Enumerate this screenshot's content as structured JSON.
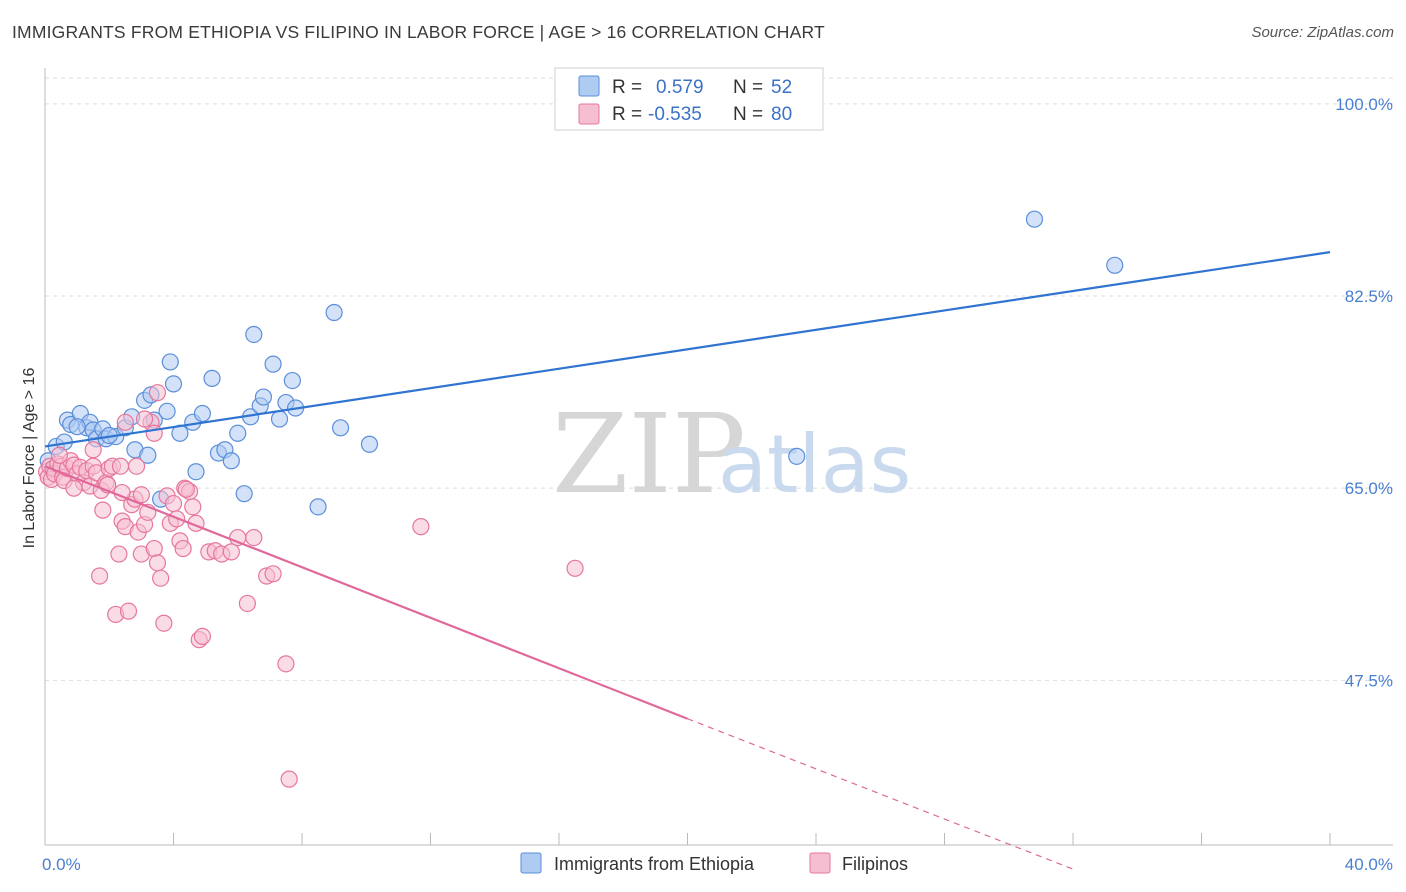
{
  "title": "IMMIGRANTS FROM ETHIOPIA VS FILIPINO IN LABOR FORCE | AGE > 16 CORRELATION CHART",
  "source": "Source: ZipAtlas.com",
  "watermark": {
    "zip": "ZIP",
    "atlas": "atlas"
  },
  "colors": {
    "blue_fill": "#aecbf2",
    "blue_stroke": "#5b8fd9",
    "blue_line": "#2f74d0",
    "pink_fill": "#f6bfd1",
    "pink_stroke": "#e7779c",
    "pink_line": "#e0689a",
    "grid": "#dddddd",
    "axis_text": "#4a7fd0"
  },
  "legend": {
    "rows": [
      {
        "r_label": "R =",
        "r_value": "0.579",
        "n_label": "N =",
        "n_value": "52",
        "color": "blue"
      },
      {
        "r_label": "R =",
        "r_value": "-0.535",
        "n_label": "N =",
        "n_value": "80",
        "color": "pink"
      }
    ]
  },
  "bottom_legend": [
    {
      "label": "Immigrants from Ethiopia",
      "color": "blue"
    },
    {
      "label": "Filipinos",
      "color": "pink"
    }
  ],
  "chart_data": {
    "type": "scatter",
    "title": "IMMIGRANTS FROM ETHIOPIA VS FILIPINO IN LABOR FORCE | AGE > 16 CORRELATION CHART",
    "xlabel": "",
    "ylabel": "In Labor Force | Age > 16",
    "xlim": [
      0,
      40
    ],
    "ylim": [
      32.5,
      104
    ],
    "x_tick_labels": [
      {
        "value": 0,
        "label": "0.0%"
      },
      {
        "value": 40,
        "label": "40.0%"
      }
    ],
    "y_tick_labels": [
      {
        "value": 100,
        "label": "100.0%"
      },
      {
        "value": 82.5,
        "label": "82.5%"
      },
      {
        "value": 65,
        "label": "65.0%"
      },
      {
        "value": 47.5,
        "label": "47.5%"
      }
    ],
    "grid": true,
    "series": [
      {
        "name": "Immigrants from Ethiopia",
        "color": "blue",
        "trend": {
          "x": [
            0,
            40
          ],
          "y": [
            68.8,
            86.5
          ],
          "dashed_from": null
        },
        "points": [
          [
            0.1,
            67.5
          ],
          [
            0.35,
            68.8
          ],
          [
            0.6,
            69.2
          ],
          [
            0.7,
            71.2
          ],
          [
            0.8,
            70.8
          ],
          [
            1.1,
            71.8
          ],
          [
            1.3,
            70.5
          ],
          [
            1.4,
            71.0
          ],
          [
            1.5,
            70.3
          ],
          [
            1.6,
            69.5
          ],
          [
            1.8,
            70.4
          ],
          [
            1.9,
            69.5
          ],
          [
            2.2,
            69.7
          ],
          [
            2.5,
            70.5
          ],
          [
            2.7,
            71.5
          ],
          [
            2.8,
            68.5
          ],
          [
            3.1,
            73.0
          ],
          [
            3.2,
            68.0
          ],
          [
            3.3,
            73.5
          ],
          [
            3.4,
            71.2
          ],
          [
            3.6,
            64.0
          ],
          [
            3.8,
            72.0
          ],
          [
            3.9,
            76.5
          ],
          [
            4.0,
            74.5
          ],
          [
            4.2,
            70.0
          ],
          [
            4.6,
            71.0
          ],
          [
            4.7,
            66.5
          ],
          [
            4.9,
            71.8
          ],
          [
            5.2,
            75.0
          ],
          [
            5.4,
            68.2
          ],
          [
            5.6,
            68.5
          ],
          [
            5.8,
            67.5
          ],
          [
            6.0,
            70.0
          ],
          [
            6.2,
            64.5
          ],
          [
            6.4,
            71.5
          ],
          [
            6.5,
            79.0
          ],
          [
            6.7,
            72.5
          ],
          [
            6.8,
            73.3
          ],
          [
            7.1,
            76.3
          ],
          [
            7.3,
            71.3
          ],
          [
            7.5,
            72.8
          ],
          [
            7.7,
            74.8
          ],
          [
            7.8,
            72.3
          ],
          [
            8.5,
            63.3
          ],
          [
            9.0,
            81.0
          ],
          [
            9.2,
            70.5
          ],
          [
            10.1,
            69.0
          ],
          [
            23.4,
            67.9
          ],
          [
            30.8,
            89.5
          ],
          [
            33.3,
            85.3
          ],
          [
            2.0,
            69.8
          ],
          [
            1.0,
            70.6
          ]
        ]
      },
      {
        "name": "Filipinos",
        "color": "pink",
        "trend": {
          "x": [
            0,
            20,
            32
          ],
          "y": [
            67.0,
            44.0,
            30.3
          ],
          "dashed_from": 20
        },
        "points": [
          [
            0.05,
            66.5
          ],
          [
            0.1,
            66.0
          ],
          [
            0.15,
            67.0
          ],
          [
            0.2,
            65.8
          ],
          [
            0.25,
            66.8
          ],
          [
            0.3,
            66.3
          ],
          [
            0.4,
            67.2
          ],
          [
            0.5,
            67.0
          ],
          [
            0.55,
            66.0
          ],
          [
            0.6,
            65.7
          ],
          [
            0.7,
            66.8
          ],
          [
            0.8,
            67.5
          ],
          [
            0.9,
            67.1
          ],
          [
            1.0,
            66.3
          ],
          [
            1.1,
            66.9
          ],
          [
            1.2,
            65.5
          ],
          [
            1.3,
            66.6
          ],
          [
            1.4,
            65.2
          ],
          [
            1.5,
            67.0
          ],
          [
            1.6,
            66.4
          ],
          [
            1.7,
            57.0
          ],
          [
            1.75,
            64.8
          ],
          [
            1.8,
            63.0
          ],
          [
            1.9,
            65.5
          ],
          [
            2.0,
            66.8
          ],
          [
            2.1,
            67.0
          ],
          [
            2.2,
            53.5
          ],
          [
            2.3,
            59.0
          ],
          [
            2.4,
            62.0
          ],
          [
            2.5,
            61.5
          ],
          [
            2.6,
            53.8
          ],
          [
            2.7,
            63.5
          ],
          [
            2.8,
            64.0
          ],
          [
            2.85,
            67.0
          ],
          [
            2.9,
            61.0
          ],
          [
            3.0,
            59.0
          ],
          [
            3.1,
            61.7
          ],
          [
            3.2,
            62.8
          ],
          [
            3.3,
            71.0
          ],
          [
            3.4,
            59.5
          ],
          [
            3.5,
            58.2
          ],
          [
            3.6,
            56.8
          ],
          [
            3.7,
            52.7
          ],
          [
            3.8,
            64.3
          ],
          [
            3.9,
            61.8
          ],
          [
            4.0,
            63.6
          ],
          [
            4.1,
            62.2
          ],
          [
            4.2,
            60.2
          ],
          [
            4.3,
            59.5
          ],
          [
            4.35,
            65.0
          ],
          [
            4.5,
            64.7
          ],
          [
            4.6,
            63.3
          ],
          [
            4.7,
            61.8
          ],
          [
            4.8,
            51.2
          ],
          [
            4.9,
            51.5
          ],
          [
            5.1,
            59.2
          ],
          [
            5.3,
            59.3
          ],
          [
            5.5,
            59.0
          ],
          [
            5.8,
            59.2
          ],
          [
            6.0,
            60.5
          ],
          [
            6.3,
            54.5
          ],
          [
            6.5,
            60.5
          ],
          [
            6.9,
            57.0
          ],
          [
            7.1,
            57.2
          ],
          [
            7.5,
            49.0
          ],
          [
            7.6,
            38.5
          ],
          [
            11.7,
            61.5
          ],
          [
            16.5,
            57.7
          ],
          [
            3.0,
            64.4
          ],
          [
            2.4,
            64.6
          ],
          [
            1.95,
            65.3
          ],
          [
            4.4,
            64.9
          ],
          [
            3.5,
            73.7
          ],
          [
            3.4,
            70.0
          ],
          [
            3.1,
            71.3
          ],
          [
            2.5,
            71.0
          ],
          [
            1.5,
            68.5
          ],
          [
            0.9,
            65.0
          ],
          [
            0.45,
            68.0
          ],
          [
            2.35,
            67.0
          ]
        ]
      }
    ]
  }
}
